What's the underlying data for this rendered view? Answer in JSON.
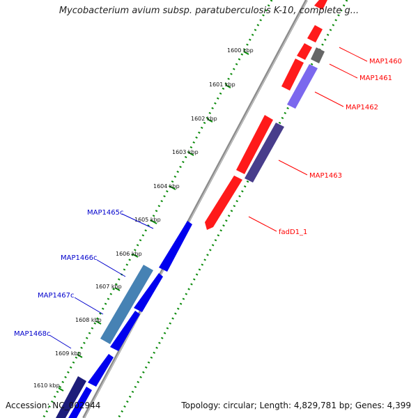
{
  "title": "Mycobacterium avium subsp. paratuberculosis K-10, complete g...",
  "accession": "Accession: NC_002944",
  "summary": "Topology: circular; Length: 4,829,781 bp; Genes: 4,399",
  "colors": {
    "forward": "#ff0000",
    "reverse": "#0000ee",
    "backbone": "#888888",
    "ruler": "#0a8a0a"
  },
  "ticks": [
    {
      "label": "1600 kbp"
    },
    {
      "label": "1601 kbp"
    },
    {
      "label": "1602 kbp"
    },
    {
      "label": "1603 kbp"
    },
    {
      "label": "1604 kbp"
    },
    {
      "label": "1605 kbp"
    },
    {
      "label": "1606 kbp"
    },
    {
      "label": "1607 kbp"
    },
    {
      "label": "1608 kbp"
    },
    {
      "label": "1609 kbp"
    },
    {
      "label": "1610 kbp"
    }
  ],
  "genes": [
    {
      "name": "MAP1460",
      "strand": "forward",
      "color": "#ff0000"
    },
    {
      "name": "MAP1461",
      "strand": "forward",
      "color": "#777777"
    },
    {
      "name": "MAP1462",
      "strand": "forward",
      "color": "#7b68ee"
    },
    {
      "name": "MAP1463",
      "strand": "forward",
      "color": "#483d8b"
    },
    {
      "name": "fadD1_1",
      "strand": "forward",
      "color": "#ff0000"
    },
    {
      "name": "MAP1465c",
      "strand": "reverse",
      "color": "#0000ee"
    },
    {
      "name": "MAP1466c",
      "strand": "reverse",
      "color": "#4682b4"
    },
    {
      "name": "MAP1467c",
      "strand": "reverse",
      "color": "#0000ee"
    },
    {
      "name": "MAP1468c",
      "strand": "reverse",
      "color": "#0000ee"
    }
  ]
}
